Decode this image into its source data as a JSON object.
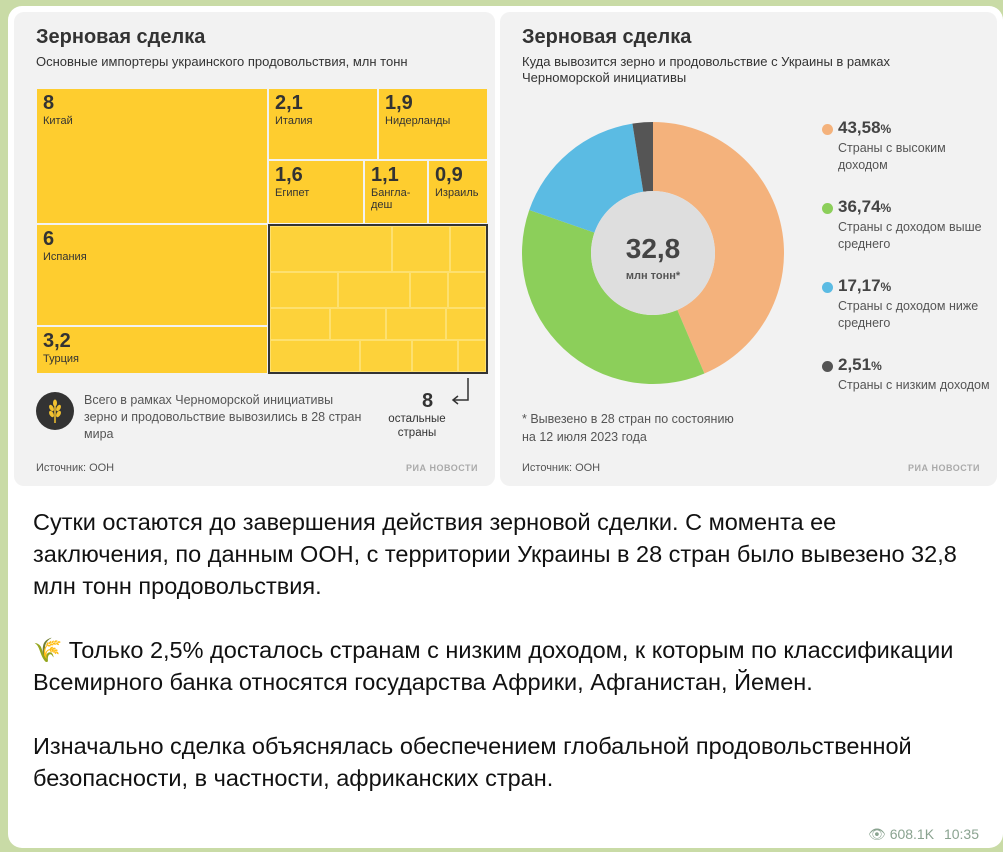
{
  "left_card": {
    "title": "Зерновая сделка",
    "subtitle": "Основные импортеры украинского продовольствия, млн тонн",
    "importers": [
      {
        "value": "8",
        "name": "Китай"
      },
      {
        "value": "2,1",
        "name": "Италия"
      },
      {
        "value": "1,9",
        "name": "Нидерланды"
      },
      {
        "value": "1,6",
        "name": "Египет"
      },
      {
        "value": "1,1",
        "name": "Бангла-\nдеш"
      },
      {
        "value": "0,9",
        "name": "Израиль"
      },
      {
        "value": "6",
        "name": "Испания"
      },
      {
        "value": "3,2",
        "name": "Турция"
      }
    ],
    "others_value": "8",
    "others_label": "остальные\nстраны",
    "note": "Всего в рамках Черноморской инициативы зерно и продовольствие вывозились в 28 стран мира",
    "source": "Источник: ООН",
    "logo": "РИА НОВОСТИ"
  },
  "right_card": {
    "title": "Зерновая сделка",
    "subtitle_line1": "Куда вывозится зерно и продовольствие с Украины в рамках",
    "subtitle_line2": "Черноморской инициативы",
    "center_value": "32,8",
    "center_unit": "млн тонн*",
    "legend": [
      {
        "pct": "43,58",
        "unit": "%",
        "label": "Страны с высоким доходом",
        "color": "#f4b27c"
      },
      {
        "pct": "36,74",
        "unit": "%",
        "label": "Страны с доходом выше среднего",
        "color": "#8ccf5a"
      },
      {
        "pct": "17,17",
        "unit": "%",
        "label": "Страны с доходом ниже среднего",
        "color": "#5bbbe3"
      },
      {
        "pct": "2,51",
        "unit": "%",
        "label": "Страны с низким доходом",
        "color": "#555555"
      }
    ],
    "footnote_line1": "* Вывезено в 28 стран по состоянию",
    "footnote_line2": "на 12 июля 2023 года",
    "source": "Источник: ООН",
    "logo": "РИА НОВОСТИ"
  },
  "chart_data": {
    "type": "pie",
    "categories": [
      "Страны с высоким доходом",
      "Страны с доходом выше среднего",
      "Страны с доходом ниже среднего",
      "Страны с низким доходом"
    ],
    "values": [
      43.58,
      36.74,
      17.17,
      2.51
    ]
  },
  "message": {
    "p1": "Сутки остаются до завершения действия зерновой сделки. С момента ее заключения, по данным ООН, с территории Украины в 28 стран было вывезено 32,8 млн тонн продовольствия.",
    "p2": "🌾 Только 2,5% досталось странам с низким доходом, к которым по классификации Всемирного банка относятся государства Африки, Афганистан, Йемен.",
    "p3": "Изначально сделка объяснялась обеспечением глобальной продовольственной безопасности, в частности, африканских стран."
  },
  "meta": {
    "views": "608.1K",
    "time": "10:35"
  }
}
